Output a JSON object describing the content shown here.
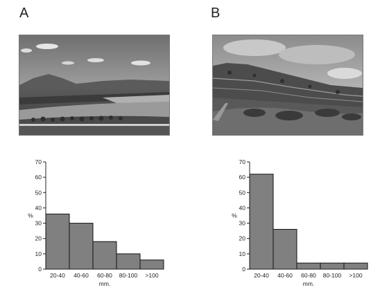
{
  "panels": [
    {
      "label": "A"
    },
    {
      "label": "B"
    }
  ],
  "photos": [
    {
      "scene": "agricultural-plain-landscape"
    },
    {
      "scene": "terraced-hillside-landscape"
    }
  ],
  "chart_data": [
    {
      "type": "bar",
      "categories": [
        "20-40",
        "40-60",
        "60-80",
        "80-100",
        ">100"
      ],
      "values": [
        36,
        30,
        18,
        10,
        6
      ],
      "title": "",
      "xlabel": "mm.",
      "ylabel": "%",
      "ylim": [
        0,
        70
      ],
      "yticks": [
        0,
        10,
        20,
        30,
        40,
        50,
        60,
        70
      ],
      "bar_color": "#808080",
      "grid": false
    },
    {
      "type": "bar",
      "categories": [
        "20-40",
        "40-60",
        "60-80",
        "80-100",
        ">100"
      ],
      "values": [
        62,
        26,
        4,
        4,
        4
      ],
      "title": "",
      "xlabel": "mm.",
      "ylabel": "%",
      "ylim": [
        0,
        70
      ],
      "yticks": [
        0,
        10,
        20,
        30,
        40,
        50,
        60,
        70
      ],
      "bar_color": "#808080",
      "grid": false
    }
  ]
}
